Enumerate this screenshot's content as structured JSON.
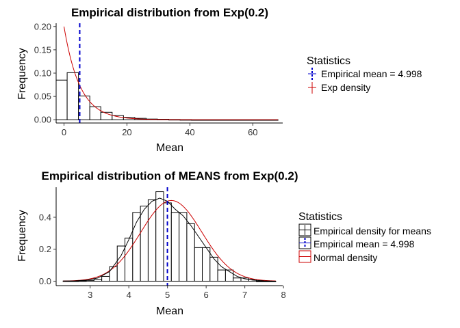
{
  "chart_data": [
    {
      "type": "bar",
      "title": "Empirical distribution from Exp(0.2)",
      "xlabel": "Mean",
      "ylabel": "Frequency",
      "xlim": [
        -2.5,
        69.5
      ],
      "ylim": [
        -0.007,
        0.207
      ],
      "x_ticks": [
        0,
        20,
        40,
        60
      ],
      "y_ticks": [
        0.0,
        0.05,
        0.1,
        0.15,
        0.2
      ],
      "y_tick_labels": [
        "0.00",
        "0.05",
        "0.10",
        "0.15",
        "0.20"
      ],
      "bins": [
        {
          "x0": -2.5,
          "x1": 1.0,
          "height": 0.085
        },
        {
          "x0": 1.0,
          "x1": 4.6,
          "height": 0.101
        },
        {
          "x0": 4.6,
          "x1": 8.2,
          "height": 0.051
        },
        {
          "x0": 8.2,
          "x1": 11.7,
          "height": 0.028
        },
        {
          "x0": 11.7,
          "x1": 15.3,
          "height": 0.016
        },
        {
          "x0": 15.3,
          "x1": 18.9,
          "height": 0.009
        },
        {
          "x0": 18.9,
          "x1": 22.5,
          "height": 0.005
        },
        {
          "x0": 22.5,
          "x1": 26.1,
          "height": 0.003
        },
        {
          "x0": 26.1,
          "x1": 29.7,
          "height": 0.0015
        },
        {
          "x0": 29.7,
          "x1": 33.3,
          "height": 0.001
        },
        {
          "x0": 33.3,
          "x1": 36.9,
          "height": 0.0005
        },
        {
          "x0": 36.9,
          "x1": 40.5,
          "height": 0.0002
        },
        {
          "x0": 40.5,
          "x1": 68.0,
          "height": 0.0
        }
      ],
      "density_curve": {
        "name": "Exp density",
        "rate": 0.2,
        "x_from": 0,
        "x_to": 68,
        "color": "#cc0000"
      },
      "mean_line": {
        "x": 4.998,
        "color": "#0000cc"
      },
      "legend": {
        "title": "Statistics",
        "position": "right",
        "entries": [
          {
            "label": "Empirical mean =  4.998",
            "color": "#0000cc"
          },
          {
            "label": "Exp density",
            "color": "#cc0000"
          }
        ]
      }
    },
    {
      "type": "bar",
      "title": "Empirical distribution of MEANS from Exp(0.2)",
      "xlabel": "Mean",
      "ylabel": "Frequency",
      "xlim": [
        2.12,
        7.98
      ],
      "ylim": [
        -0.028,
        0.588
      ],
      "x_ticks": [
        3,
        4,
        5,
        6,
        7,
        8
      ],
      "y_ticks": [
        0.0,
        0.2,
        0.4
      ],
      "y_tick_labels": [
        "0.0",
        "0.2",
        "0.4"
      ],
      "bins": [
        {
          "x0": 2.3,
          "x1": 2.5,
          "height": 0.001
        },
        {
          "x0": 2.5,
          "x1": 2.7,
          "height": 0.001
        },
        {
          "x0": 2.7,
          "x1": 2.9,
          "height": 0.002
        },
        {
          "x0": 2.9,
          "x1": 3.1,
          "height": 0.005
        },
        {
          "x0": 3.1,
          "x1": 3.3,
          "height": 0.01
        },
        {
          "x0": 3.3,
          "x1": 3.5,
          "height": 0.03
        },
        {
          "x0": 3.5,
          "x1": 3.7,
          "height": 0.09
        },
        {
          "x0": 3.7,
          "x1": 3.9,
          "height": 0.22
        },
        {
          "x0": 3.9,
          "x1": 4.1,
          "height": 0.27
        },
        {
          "x0": 4.1,
          "x1": 4.3,
          "height": 0.43
        },
        {
          "x0": 4.3,
          "x1": 4.5,
          "height": 0.47
        },
        {
          "x0": 4.5,
          "x1": 4.7,
          "height": 0.51
        },
        {
          "x0": 4.7,
          "x1": 4.9,
          "height": 0.56
        },
        {
          "x0": 4.9,
          "x1": 5.1,
          "height": 0.49
        },
        {
          "x0": 5.1,
          "x1": 5.3,
          "height": 0.43
        },
        {
          "x0": 5.3,
          "x1": 5.5,
          "height": 0.43
        },
        {
          "x0": 5.5,
          "x1": 5.7,
          "height": 0.36
        },
        {
          "x0": 5.7,
          "x1": 5.9,
          "height": 0.21
        },
        {
          "x0": 5.9,
          "x1": 6.1,
          "height": 0.21
        },
        {
          "x0": 6.1,
          "x1": 6.3,
          "height": 0.15
        },
        {
          "x0": 6.3,
          "x1": 6.5,
          "height": 0.07
        },
        {
          "x0": 6.5,
          "x1": 6.7,
          "height": 0.07
        },
        {
          "x0": 6.7,
          "x1": 6.9,
          "height": 0.02
        },
        {
          "x0": 6.9,
          "x1": 7.1,
          "height": 0.02
        },
        {
          "x0": 7.1,
          "x1": 7.3,
          "height": 0.01
        },
        {
          "x0": 7.3,
          "x1": 7.8,
          "height": 0.0
        }
      ],
      "empirical_density": {
        "name": "Empirical density for means",
        "color": "#000000",
        "x": [
          2.3,
          2.6,
          2.9,
          3.2,
          3.5,
          3.8,
          4.0,
          4.2,
          4.4,
          4.6,
          4.8,
          5.0,
          5.2,
          5.4,
          5.6,
          5.8,
          6.0,
          6.2,
          6.4,
          6.6,
          6.8,
          7.0,
          7.2,
          7.5,
          7.8
        ],
        "y": [
          0.001,
          0.002,
          0.006,
          0.02,
          0.06,
          0.16,
          0.26,
          0.37,
          0.45,
          0.5,
          0.52,
          0.5,
          0.45,
          0.41,
          0.35,
          0.28,
          0.21,
          0.14,
          0.09,
          0.06,
          0.03,
          0.015,
          0.007,
          0.002,
          0.0
        ]
      },
      "normal_curve": {
        "name": "Normal density",
        "mean": 5.1,
        "sd": 0.79,
        "x_from": 2.3,
        "x_to": 7.8,
        "color": "#cc0000"
      },
      "mean_line": {
        "x": 4.998,
        "color": "#0000cc"
      },
      "legend": {
        "title": "Statistics",
        "position": "right",
        "entries": [
          {
            "label": "Empirical density for means",
            "color": "#000000"
          },
          {
            "label": "Empirical mean =  4.998",
            "color": "#0000cc"
          },
          {
            "label": "Normal density",
            "color": "#cc0000"
          }
        ]
      }
    }
  ]
}
